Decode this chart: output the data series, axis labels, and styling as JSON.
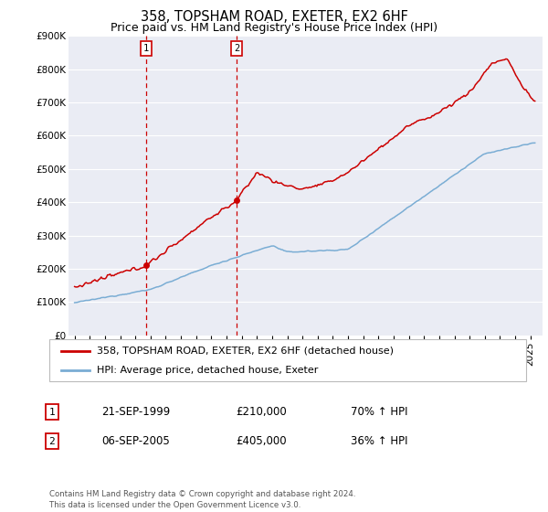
{
  "title": "358, TOPSHAM ROAD, EXETER, EX2 6HF",
  "subtitle": "Price paid vs. HM Land Registry's House Price Index (HPI)",
  "ylim": [
    0,
    900000
  ],
  "yticks": [
    0,
    100000,
    200000,
    300000,
    400000,
    500000,
    600000,
    700000,
    800000,
    900000
  ],
  "ytick_labels": [
    "£0",
    "£100K",
    "£200K",
    "£300K",
    "£400K",
    "£500K",
    "£600K",
    "£700K",
    "£800K",
    "£900K"
  ],
  "xlim_start": 1994.6,
  "xlim_end": 2025.8,
  "sale1_x": 1999.72,
  "sale1_y": 210000,
  "sale2_x": 2005.68,
  "sale2_y": 405000,
  "red_line_color": "#cc0000",
  "blue_line_color": "#7aadd4",
  "vline_color": "#cc0000",
  "background_color": "#ffffff",
  "plot_bg_color": "#eaecf4",
  "grid_color": "#ffffff",
  "legend_label_red": "358, TOPSHAM ROAD, EXETER, EX2 6HF (detached house)",
  "legend_label_blue": "HPI: Average price, detached house, Exeter",
  "table_row1": [
    "1",
    "21-SEP-1999",
    "£210,000",
    "70% ↑ HPI"
  ],
  "table_row2": [
    "2",
    "06-SEP-2005",
    "£405,000",
    "36% ↑ HPI"
  ],
  "footnote": "Contains HM Land Registry data © Crown copyright and database right 2024.\nThis data is licensed under the Open Government Licence v3.0.",
  "title_fontsize": 10.5,
  "subtitle_fontsize": 9,
  "tick_fontsize": 7.5,
  "legend_fontsize": 8
}
